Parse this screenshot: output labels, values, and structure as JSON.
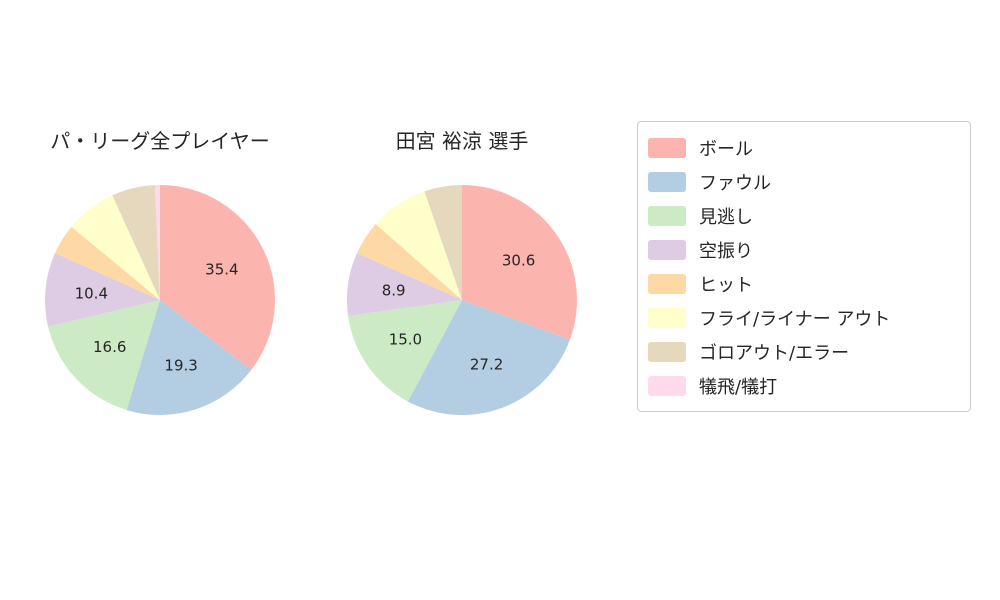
{
  "chart_data": {
    "type": "pie",
    "direction": "clockwise",
    "start_angle_deg": 90,
    "grid": false,
    "legend_position": "right",
    "colors": [
      "#fbb4ae",
      "#b3cde3",
      "#ccebc5",
      "#decbe4",
      "#fed9a6",
      "#ffffcc",
      "#e5d8bd",
      "#fddaec"
    ],
    "legend_labels": [
      "ボール",
      "ファウル",
      "見逃し",
      "空振り",
      "ヒット",
      "フライ/ライナー アウト",
      "ゴロアウト/エラー",
      "犠飛/犠打"
    ],
    "pies": [
      {
        "title": "パ・リーグ全プレイヤー",
        "categories": [
          "ボール",
          "ファウル",
          "見逃し",
          "空振り",
          "ヒット",
          "フライ/ライナー アウト",
          "ゴロアウト/エラー",
          "犠飛/犠打"
        ],
        "values": [
          35.4,
          19.3,
          16.6,
          10.4,
          4.3,
          7.2,
          6.1,
          0.7
        ],
        "slice_labels": [
          "35.4",
          "19.3",
          "16.6",
          "10.4",
          "",
          "",
          "",
          ""
        ]
      },
      {
        "title": "田宮 裕涼  選手",
        "categories": [
          "ボール",
          "ファウル",
          "見逃し",
          "空振り",
          "ヒット",
          "フライ/ライナー アウト",
          "ゴロアウト/エラー",
          "犠飛/犠打"
        ],
        "values": [
          30.6,
          27.2,
          15.0,
          8.9,
          4.8,
          8.2,
          5.3,
          0.0
        ],
        "slice_labels": [
          "30.6",
          "27.2",
          "15.0",
          "8.9",
          "",
          "",
          "",
          ""
        ]
      }
    ]
  }
}
